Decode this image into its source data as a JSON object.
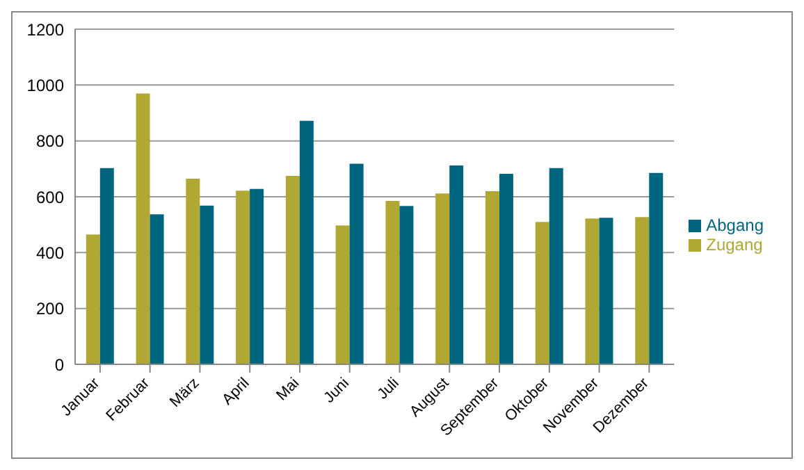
{
  "chart_data": {
    "type": "bar",
    "categories": [
      "Januar",
      "Februar",
      "März",
      "April",
      "Mai",
      "Juni",
      "Juli",
      "August",
      "September",
      "Oktober",
      "November",
      "Dezember"
    ],
    "series": [
      {
        "name": "Zugang",
        "color": "#b0a833",
        "values": [
          465,
          970,
          665,
          622,
          675,
          497,
          585,
          612,
          620,
          510,
          522,
          527
        ]
      },
      {
        "name": "Abgang",
        "color": "#006680",
        "values": [
          703,
          537,
          568,
          628,
          872,
          718,
          567,
          712,
          682,
          703,
          525,
          685
        ]
      }
    ],
    "ylim": [
      0,
      1200
    ],
    "yticks": [
      0,
      200,
      400,
      600,
      800,
      1000,
      1200
    ],
    "grid": "y",
    "legend": "right"
  }
}
